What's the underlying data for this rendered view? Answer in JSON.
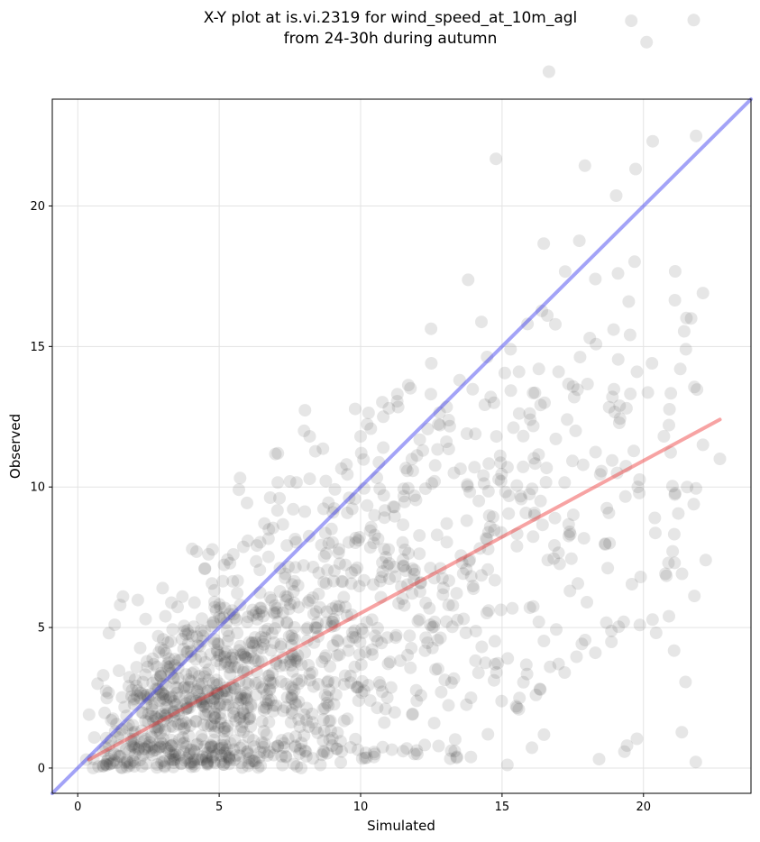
{
  "chart_data": {
    "type": "scatter",
    "title": "X-Y plot at is.vi.2319 for wind_speed_at_10m_agl",
    "subtitle": "from 24-30h during autumn",
    "xlabel": "Simulated",
    "ylabel": "Observed",
    "xlim": [
      -0.9,
      23.8
    ],
    "ylim": [
      -0.9,
      23.8
    ],
    "xticks": [
      "0",
      "5",
      "10",
      "15",
      "20"
    ],
    "yticks": [
      "0",
      "5",
      "10",
      "15",
      "20"
    ],
    "grid": true,
    "point_color": "#333333",
    "point_opacity": 0.12,
    "reference_line": {
      "color": "#3333ee",
      "from": [
        -0.9,
        -0.9
      ],
      "to": [
        23.8,
        23.8
      ]
    },
    "fit_line": {
      "color": "#ee3333",
      "from": [
        0.4,
        0.3
      ],
      "to": [
        22.7,
        12.4
      ]
    },
    "outliers": [
      [
        19.1,
        17.6
      ],
      [
        22.1,
        16.9
      ],
      [
        16.6,
        16.1
      ],
      [
        18.3,
        17.4
      ],
      [
        15.9,
        15.8
      ],
      [
        18.1,
        15.3
      ],
      [
        21.5,
        14.9
      ],
      [
        21.3,
        14.2
      ],
      [
        20.3,
        14.4
      ],
      [
        15.3,
        14.9
      ],
      [
        15.6,
        14.1
      ],
      [
        16.3,
        14.2
      ],
      [
        17.0,
        14.1
      ],
      [
        12.5,
        14.4
      ],
      [
        11.3,
        13.3
      ],
      [
        11.0,
        12.8
      ],
      [
        10.8,
        12.5
      ],
      [
        13.5,
        13.8
      ],
      [
        14.6,
        13.2
      ],
      [
        22.1,
        11.5
      ],
      [
        22.7,
        11.0
      ],
      [
        20.9,
        12.2
      ],
      [
        21.1,
        7.3
      ],
      [
        20.9,
        5.4
      ],
      [
        22.2,
        7.4
      ],
      [
        19.3,
        5.2
      ],
      [
        18.3,
        4.1
      ],
      [
        17.0,
        3.7
      ],
      [
        16.7,
        3.6
      ],
      [
        16.2,
        2.6
      ],
      [
        15.5,
        2.2
      ],
      [
        14.5,
        1.2
      ],
      [
        13.4,
        0.4
      ],
      [
        11.5,
        0.6
      ],
      [
        10.5,
        0.5
      ],
      [
        9.3,
        0.2
      ],
      [
        9.0,
        0.8
      ],
      [
        8.9,
        1.0
      ],
      [
        11.9,
        0.5
      ],
      [
        7.9,
        0.0
      ],
      [
        1.1,
        4.8
      ],
      [
        1.5,
        5.8
      ],
      [
        1.6,
        6.1
      ],
      [
        2.4,
        5.3
      ],
      [
        3.0,
        6.4
      ],
      [
        3.1,
        5.4
      ],
      [
        3.7,
        6.1
      ],
      [
        4.2,
        7.7
      ],
      [
        4.5,
        7.1
      ],
      [
        5.5,
        7.6
      ],
      [
        6.6,
        8.7
      ],
      [
        8.0,
        12.0
      ],
      [
        8.2,
        11.8
      ],
      [
        7.5,
        10.2
      ],
      [
        9.5,
        10.8
      ],
      [
        10.0,
        11.8
      ],
      [
        0.9,
        3.3
      ],
      [
        0.7,
        3.0
      ],
      [
        0.4,
        1.9
      ],
      [
        0.3,
        0.3
      ],
      [
        17.6,
        12.0
      ],
      [
        18.9,
        13.2
      ],
      [
        19.4,
        12.8
      ],
      [
        16.5,
        13.0
      ],
      [
        17.3,
        12.4
      ],
      [
        12.8,
        12.2
      ],
      [
        12.2,
        11.3
      ],
      [
        14.8,
        11.8
      ],
      [
        13.3,
        10.5
      ],
      [
        19.8,
        10.0
      ],
      [
        20.4,
        8.9
      ],
      [
        19.9,
        6.8
      ],
      [
        18.8,
        8.0
      ],
      [
        18.0,
        5.9
      ],
      [
        17.4,
        6.3
      ],
      [
        16.3,
        5.2
      ],
      [
        15.2,
        3.9
      ],
      [
        14.8,
        3.4
      ],
      [
        13.9,
        2.5
      ],
      [
        12.6,
        1.6
      ]
    ]
  }
}
